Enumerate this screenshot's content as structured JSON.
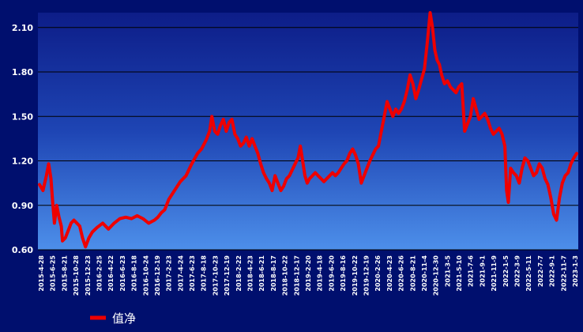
{
  "chart_data": {
    "type": "line",
    "title": "",
    "xlabel": "",
    "ylabel": "",
    "ylim": [
      0.6,
      2.2
    ],
    "yticks": [
      "0.60",
      "0.90",
      "1.20",
      "1.50",
      "1.80",
      "2.10"
    ],
    "x_tick_labels": [
      "2015-4-28",
      "2015-6-25",
      "2015-8-21",
      "2015-10-28",
      "2015-12-23",
      "2016-2-25",
      "2016-4-22",
      "2016-6-23",
      "2016-8-18",
      "2016-10-24",
      "2016-12-19",
      "2017-2-23",
      "2017-4-24",
      "2017-6-23",
      "2017-8-18",
      "2017-10-23",
      "2017-12-19",
      "2018-2-22",
      "2018-4-23",
      "2018-6-21",
      "2018-8-17",
      "2018-10-22",
      "2018-12-17",
      "2019-2-20",
      "2019-4-18",
      "2019-6-20",
      "2019-8-16",
      "2019-10-22",
      "2019-12-19",
      "2020-2-26",
      "2020-4-23",
      "2020-6-26",
      "2020-8-21",
      "2020-11-4",
      "2020-12-30",
      "2021-3-5",
      "2021-5-10",
      "2021-7-6",
      "2021-9-1",
      "2021-11-9",
      "2022-1-5",
      "2022-3-9",
      "2022-5-11",
      "2022-7-7",
      "2022-9-1",
      "2022-11-7",
      "2023-1-3"
    ],
    "grid": true,
    "legend": "bottom-left",
    "series": [
      {
        "name": "值净",
        "color": "#ee0000",
        "points": [
          [
            0,
            1.04
          ],
          [
            0.6,
            1.0
          ],
          [
            1.2,
            1.1
          ],
          [
            1.6,
            1.18
          ],
          [
            2.0,
            1.08
          ],
          [
            2.3,
            0.92
          ],
          [
            2.6,
            0.78
          ],
          [
            3.0,
            0.9
          ],
          [
            3.4,
            0.82
          ],
          [
            3.8,
            0.76
          ],
          [
            4.0,
            0.66
          ],
          [
            4.5,
            0.68
          ],
          [
            5.0,
            0.73
          ],
          [
            5.5,
            0.78
          ],
          [
            6.0,
            0.8
          ],
          [
            6.5,
            0.78
          ],
          [
            7.0,
            0.76
          ],
          [
            7.5,
            0.68
          ],
          [
            8.0,
            0.62
          ],
          [
            8.6,
            0.68
          ],
          [
            9.2,
            0.72
          ],
          [
            10.0,
            0.75
          ],
          [
            11.0,
            0.78
          ],
          [
            12.0,
            0.74
          ],
          [
            13.0,
            0.78
          ],
          [
            14.0,
            0.81
          ],
          [
            15.0,
            0.82
          ],
          [
            16.0,
            0.81
          ],
          [
            17.0,
            0.83
          ],
          [
            18.0,
            0.81
          ],
          [
            19.0,
            0.78
          ],
          [
            20.0,
            0.8
          ],
          [
            20.6,
            0.82
          ],
          [
            21.2,
            0.85
          ],
          [
            21.8,
            0.87
          ],
          [
            22.5,
            0.94
          ],
          [
            23.5,
            1.0
          ],
          [
            24.5,
            1.06
          ],
          [
            25.5,
            1.1
          ],
          [
            26.5,
            1.18
          ],
          [
            27.5,
            1.25
          ],
          [
            28.2,
            1.28
          ],
          [
            29.0,
            1.34
          ],
          [
            29.6,
            1.4
          ],
          [
            30.0,
            1.5
          ],
          [
            30.5,
            1.4
          ],
          [
            31.0,
            1.38
          ],
          [
            31.5,
            1.44
          ],
          [
            32.0,
            1.48
          ],
          [
            32.5,
            1.4
          ],
          [
            33.0,
            1.46
          ],
          [
            33.5,
            1.48
          ],
          [
            34.0,
            1.38
          ],
          [
            34.5,
            1.35
          ],
          [
            35.0,
            1.3
          ],
          [
            35.5,
            1.32
          ],
          [
            36.0,
            1.36
          ],
          [
            36.5,
            1.3
          ],
          [
            37.0,
            1.35
          ],
          [
            37.5,
            1.3
          ],
          [
            38.0,
            1.25
          ],
          [
            38.5,
            1.18
          ],
          [
            39.0,
            1.12
          ],
          [
            39.5,
            1.08
          ],
          [
            40.0,
            1.05
          ],
          [
            40.5,
            1.0
          ],
          [
            41.0,
            1.1
          ],
          [
            41.5,
            1.05
          ],
          [
            42.0,
            1.0
          ],
          [
            42.5,
            1.03
          ],
          [
            43.0,
            1.08
          ],
          [
            43.5,
            1.1
          ],
          [
            44.0,
            1.14
          ],
          [
            44.5,
            1.18
          ],
          [
            45.0,
            1.22
          ],
          [
            45.4,
            1.3
          ],
          [
            45.8,
            1.2
          ],
          [
            46.2,
            1.1
          ],
          [
            46.6,
            1.05
          ],
          [
            47.0,
            1.08
          ],
          [
            47.5,
            1.1
          ],
          [
            48.0,
            1.12
          ],
          [
            48.5,
            1.1
          ],
          [
            49.0,
            1.08
          ],
          [
            49.5,
            1.06
          ],
          [
            50.0,
            1.08
          ],
          [
            50.5,
            1.1
          ],
          [
            51.0,
            1.12
          ],
          [
            51.5,
            1.1
          ],
          [
            52.0,
            1.12
          ],
          [
            52.5,
            1.15
          ],
          [
            53.0,
            1.18
          ],
          [
            53.5,
            1.2
          ],
          [
            54.0,
            1.25
          ],
          [
            54.5,
            1.28
          ],
          [
            55.0,
            1.24
          ],
          [
            55.5,
            1.18
          ],
          [
            56.0,
            1.05
          ],
          [
            56.5,
            1.1
          ],
          [
            57.0,
            1.15
          ],
          [
            57.5,
            1.2
          ],
          [
            58.0,
            1.24
          ],
          [
            58.5,
            1.28
          ],
          [
            59.0,
            1.3
          ],
          [
            59.5,
            1.4
          ],
          [
            60.0,
            1.5
          ],
          [
            60.5,
            1.6
          ],
          [
            61.0,
            1.55
          ],
          [
            61.5,
            1.5
          ],
          [
            62.0,
            1.55
          ],
          [
            62.5,
            1.52
          ],
          [
            63.0,
            1.55
          ],
          [
            63.5,
            1.6
          ],
          [
            64.0,
            1.68
          ],
          [
            64.5,
            1.78
          ],
          [
            65.0,
            1.72
          ],
          [
            65.5,
            1.62
          ],
          [
            66.0,
            1.68
          ],
          [
            66.5,
            1.75
          ],
          [
            67.0,
            1.82
          ],
          [
            67.5,
            2.0
          ],
          [
            68.0,
            2.2
          ],
          [
            68.4,
            2.1
          ],
          [
            68.8,
            1.95
          ],
          [
            69.2,
            1.88
          ],
          [
            69.6,
            1.85
          ],
          [
            70.0,
            1.78
          ],
          [
            70.5,
            1.72
          ],
          [
            71.0,
            1.74
          ],
          [
            71.5,
            1.7
          ],
          [
            72.0,
            1.68
          ],
          [
            72.5,
            1.66
          ],
          [
            73.0,
            1.7
          ],
          [
            73.5,
            1.72
          ],
          [
            74.0,
            1.4
          ],
          [
            74.5,
            1.45
          ],
          [
            75.0,
            1.5
          ],
          [
            75.5,
            1.62
          ],
          [
            76.0,
            1.55
          ],
          [
            76.5,
            1.48
          ],
          [
            77.0,
            1.5
          ],
          [
            77.5,
            1.52
          ],
          [
            78.0,
            1.48
          ],
          [
            78.5,
            1.42
          ],
          [
            79.0,
            1.38
          ],
          [
            79.5,
            1.4
          ],
          [
            80.0,
            1.42
          ],
          [
            80.5,
            1.38
          ],
          [
            81.0,
            1.3
          ],
          [
            81.3,
            1.0
          ],
          [
            81.6,
            0.92
          ],
          [
            82.0,
            1.15
          ],
          [
            82.5,
            1.12
          ],
          [
            83.0,
            1.1
          ],
          [
            83.5,
            1.05
          ],
          [
            84.0,
            1.15
          ],
          [
            84.5,
            1.22
          ],
          [
            85.0,
            1.2
          ],
          [
            85.5,
            1.15
          ],
          [
            86.0,
            1.1
          ],
          [
            86.5,
            1.12
          ],
          [
            87.0,
            1.18
          ],
          [
            87.5,
            1.15
          ],
          [
            88.0,
            1.08
          ],
          [
            88.5,
            1.04
          ],
          [
            89.0,
            0.95
          ],
          [
            89.5,
            0.84
          ],
          [
            90.0,
            0.8
          ],
          [
            90.5,
            0.95
          ],
          [
            91.0,
            1.05
          ],
          [
            91.5,
            1.1
          ],
          [
            92.0,
            1.12
          ],
          [
            92.5,
            1.18
          ],
          [
            93.0,
            1.22
          ],
          [
            93.5,
            1.25
          ]
        ]
      }
    ]
  }
}
